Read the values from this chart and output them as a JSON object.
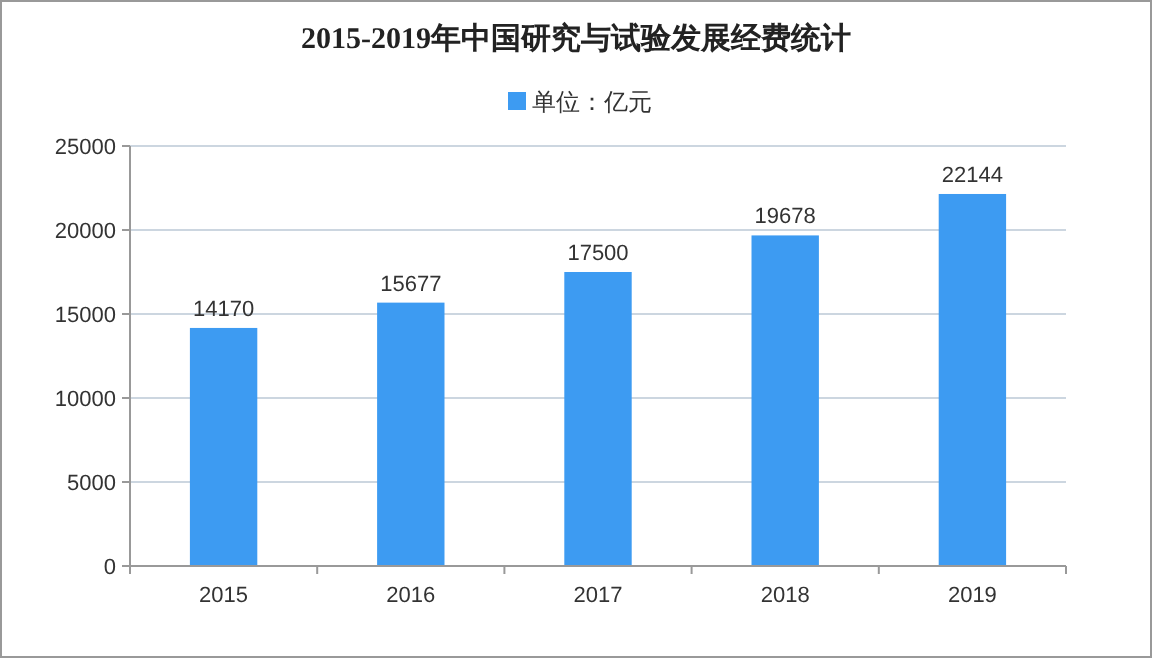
{
  "chart_data": {
    "type": "bar",
    "title": "2015-2019年中国研究与试验发展经费统计",
    "categories": [
      "2015",
      "2016",
      "2017",
      "2018",
      "2019"
    ],
    "series": [
      {
        "name": "单位：亿元",
        "color": "#3d9bf2",
        "values": [
          14170,
          15677,
          17500,
          19678,
          22144
        ]
      }
    ],
    "ylim": [
      0,
      25000
    ],
    "yticks": [
      0,
      5000,
      10000,
      15000,
      20000,
      25000
    ],
    "grid": "y",
    "legend": "top",
    "data_labels": true
  }
}
